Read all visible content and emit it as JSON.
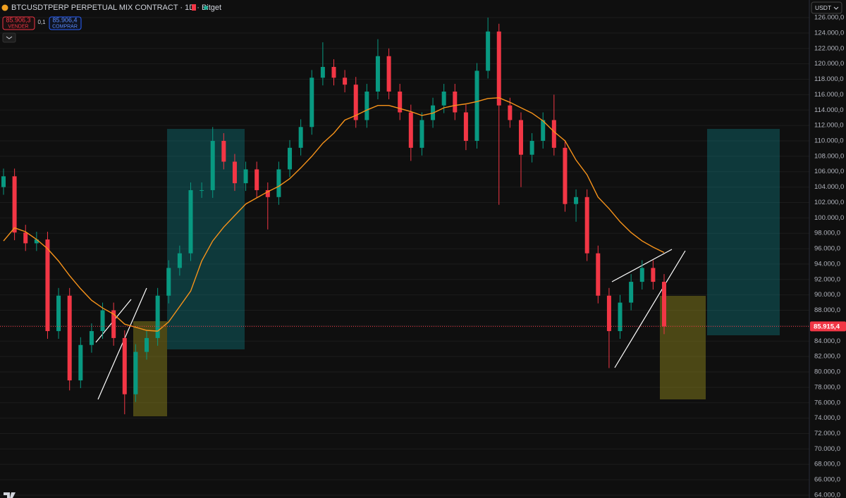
{
  "chart_data": {
    "type": "candlestick",
    "title": "BTCUSDTPERP PERPETUAL MIX CONTRACT · 1D · Bitget",
    "quote_currency": "USDT",
    "bid": "85.906,3",
    "bid_label": "VENDER",
    "spread": "0,1",
    "ask": "85.906,4",
    "ask_label": "COMPRAR",
    "last_price": {
      "value": 85915.4,
      "label": "85.915,4"
    },
    "up_color": "#089981",
    "down_color": "#f23645",
    "grid": true,
    "ylim": [
      63630,
      128290
    ],
    "yticks": [
      {
        "value": 64000,
        "label": "64.000,0"
      },
      {
        "value": 66000,
        "label": "66.000,0"
      },
      {
        "value": 68000,
        "label": "68.000,0"
      },
      {
        "value": 70000,
        "label": "70.000,0"
      },
      {
        "value": 72000,
        "label": "72.000,0"
      },
      {
        "value": 74000,
        "label": "74.000,0"
      },
      {
        "value": 76000,
        "label": "76.000,0"
      },
      {
        "value": 78000,
        "label": "78.000,0"
      },
      {
        "value": 80000,
        "label": "80.000,0"
      },
      {
        "value": 82000,
        "label": "82.000,0"
      },
      {
        "value": 84000,
        "label": "84.000,0"
      },
      {
        "value": 86000,
        "label": "86.000,0"
      },
      {
        "value": 88000,
        "label": "88.000,0"
      },
      {
        "value": 90000,
        "label": "90.000,0"
      },
      {
        "value": 92000,
        "label": "92.000,0"
      },
      {
        "value": 94000,
        "label": "94.000,0"
      },
      {
        "value": 96000,
        "label": "96.000,0"
      },
      {
        "value": 98000,
        "label": "98.000,0"
      },
      {
        "value": 100000,
        "label": "100.000,0"
      },
      {
        "value": 102000,
        "label": "102.000,0"
      },
      {
        "value": 104000,
        "label": "104.000,0"
      },
      {
        "value": 106000,
        "label": "106.000,0"
      },
      {
        "value": 108000,
        "label": "108.000,0"
      },
      {
        "value": 110000,
        "label": "110.000,0"
      },
      {
        "value": 112000,
        "label": "112.000,0"
      },
      {
        "value": 114000,
        "label": "114.000,0"
      },
      {
        "value": 116000,
        "label": "116.000,0"
      },
      {
        "value": 118000,
        "label": "118.000,0"
      },
      {
        "value": 120000,
        "label": "120.000,0"
      },
      {
        "value": 122000,
        "label": "122.000,0"
      },
      {
        "value": 124000,
        "label": "124.000,0"
      },
      {
        "value": 126000,
        "label": "126.000,0"
      }
    ],
    "open": [
      104000,
      105400,
      98100,
      96700,
      97200,
      85300,
      89900,
      78900,
      83500,
      85300,
      88000,
      84400,
      77100,
      82600,
      84400,
      89900,
      93500,
      95400,
      103600,
      103600,
      110000,
      107300,
      104500,
      106300,
      103600,
      102700,
      106300,
      109100,
      111800,
      118200,
      119600,
      118200,
      117300,
      112700,
      116400,
      121000,
      116400,
      113700,
      109100,
      112700,
      114600,
      116400,
      113700,
      110000,
      119100,
      124200,
      114600,
      112700,
      108200,
      110000,
      112700,
      109100,
      101800,
      102700,
      95400,
      89900,
      85300,
      89000,
      91700,
      93500,
      91700
    ],
    "high": [
      106400,
      106400,
      99100,
      98200,
      98200,
      90900,
      90900,
      84500,
      86300,
      89000,
      89000,
      85400,
      83600,
      85400,
      90900,
      94500,
      96400,
      104600,
      104600,
      111800,
      111000,
      108300,
      107300,
      107300,
      104600,
      107300,
      110100,
      112800,
      119200,
      122800,
      120600,
      119200,
      118300,
      117400,
      123200,
      122000,
      117400,
      114700,
      113700,
      115600,
      117400,
      117400,
      114700,
      120100,
      126000,
      125200,
      115600,
      113700,
      111000,
      113700,
      116000,
      110100,
      103700,
      103700,
      96400,
      90900,
      90000,
      92700,
      94500,
      94500,
      92700
    ],
    "low": [
      103000,
      97100,
      95700,
      95700,
      84300,
      84300,
      77600,
      77900,
      82500,
      84300,
      83400,
      74500,
      76100,
      81600,
      83400,
      88900,
      92500,
      94400,
      102600,
      102600,
      106300,
      103500,
      103500,
      102600,
      98500,
      101700,
      105300,
      108100,
      110800,
      117200,
      117200,
      116300,
      111700,
      111700,
      115400,
      115400,
      112700,
      107400,
      108100,
      111700,
      113600,
      112700,
      108800,
      109000,
      118100,
      101700,
      111700,
      104000,
      107200,
      109000,
      108100,
      100800,
      99500,
      94400,
      88900,
      80500,
      84300,
      88000,
      90700,
      90700,
      84900
    ],
    "close": [
      105400,
      98100,
      96700,
      97200,
      85300,
      89900,
      78900,
      83500,
      85300,
      88000,
      84400,
      77100,
      82600,
      84400,
      89900,
      93500,
      95400,
      103600,
      103600,
      110000,
      107300,
      104500,
      106300,
      103600,
      102700,
      106300,
      109100,
      111800,
      118200,
      119600,
      118200,
      117300,
      112700,
      116400,
      121000,
      116400,
      113700,
      109100,
      112700,
      114600,
      116400,
      113700,
      110000,
      119100,
      124200,
      114600,
      112700,
      108200,
      110000,
      112700,
      109100,
      101800,
      102700,
      95400,
      89900,
      85300,
      89000,
      91700,
      93500,
      91700,
      85900
    ],
    "ma": {
      "color": "#f7931a",
      "values": [
        97000,
        98700,
        98200,
        97200,
        96000,
        94400,
        92500,
        90800,
        89300,
        88300,
        87500,
        86200,
        85800,
        85400,
        85300,
        86500,
        88500,
        90500,
        94400,
        97000,
        98800,
        100300,
        101800,
        102600,
        103400,
        104100,
        105100,
        106500,
        108000,
        109700,
        111000,
        112700,
        113300,
        114000,
        114600,
        114600,
        114200,
        113800,
        113300,
        113600,
        114300,
        114600,
        114800,
        115100,
        115500,
        115600,
        115000,
        114300,
        113600,
        112600,
        111200,
        110000,
        107500,
        105600,
        102700,
        101200,
        99500,
        98100,
        97000,
        96200,
        95500
      ]
    }
  }
}
